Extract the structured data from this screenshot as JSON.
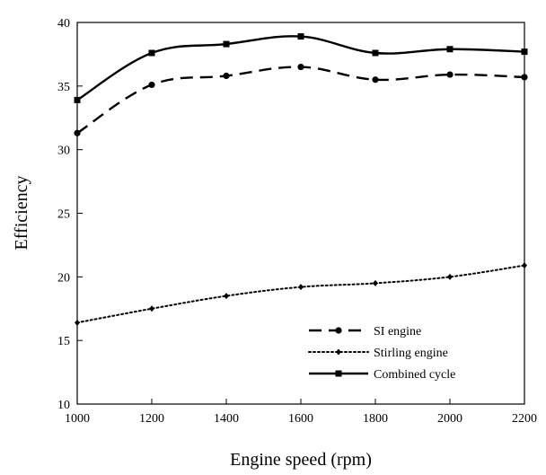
{
  "chart_data": {
    "type": "line",
    "title": "",
    "xlabel": "Engine speed (rpm)",
    "ylabel": "Efficiency",
    "x": [
      1000,
      1200,
      1400,
      1600,
      1800,
      2000,
      2200
    ],
    "xlim": [
      1000,
      2200
    ],
    "ylim": [
      10,
      40
    ],
    "xticks": [
      1000,
      1200,
      1400,
      1600,
      1800,
      2000,
      2200
    ],
    "yticks": [
      10,
      15,
      20,
      25,
      30,
      35,
      40
    ],
    "grid": false,
    "legend_position": "bottom-right",
    "series": [
      {
        "name": "SI engine",
        "values": [
          31.3,
          35.1,
          35.8,
          36.5,
          35.5,
          35.9,
          35.7
        ],
        "line_style": "dashed",
        "marker": "circle",
        "color": "#000000"
      },
      {
        "name": "Stirling engine",
        "values": [
          16.4,
          17.5,
          18.5,
          19.2,
          19.5,
          20.0,
          20.9
        ],
        "line_style": "dotted",
        "marker": "diamond",
        "color": "#000000"
      },
      {
        "name": "Combined cycle",
        "values": [
          33.9,
          37.6,
          38.3,
          38.9,
          37.6,
          37.9,
          37.7
        ],
        "line_style": "solid",
        "marker": "square",
        "color": "#000000"
      }
    ]
  }
}
